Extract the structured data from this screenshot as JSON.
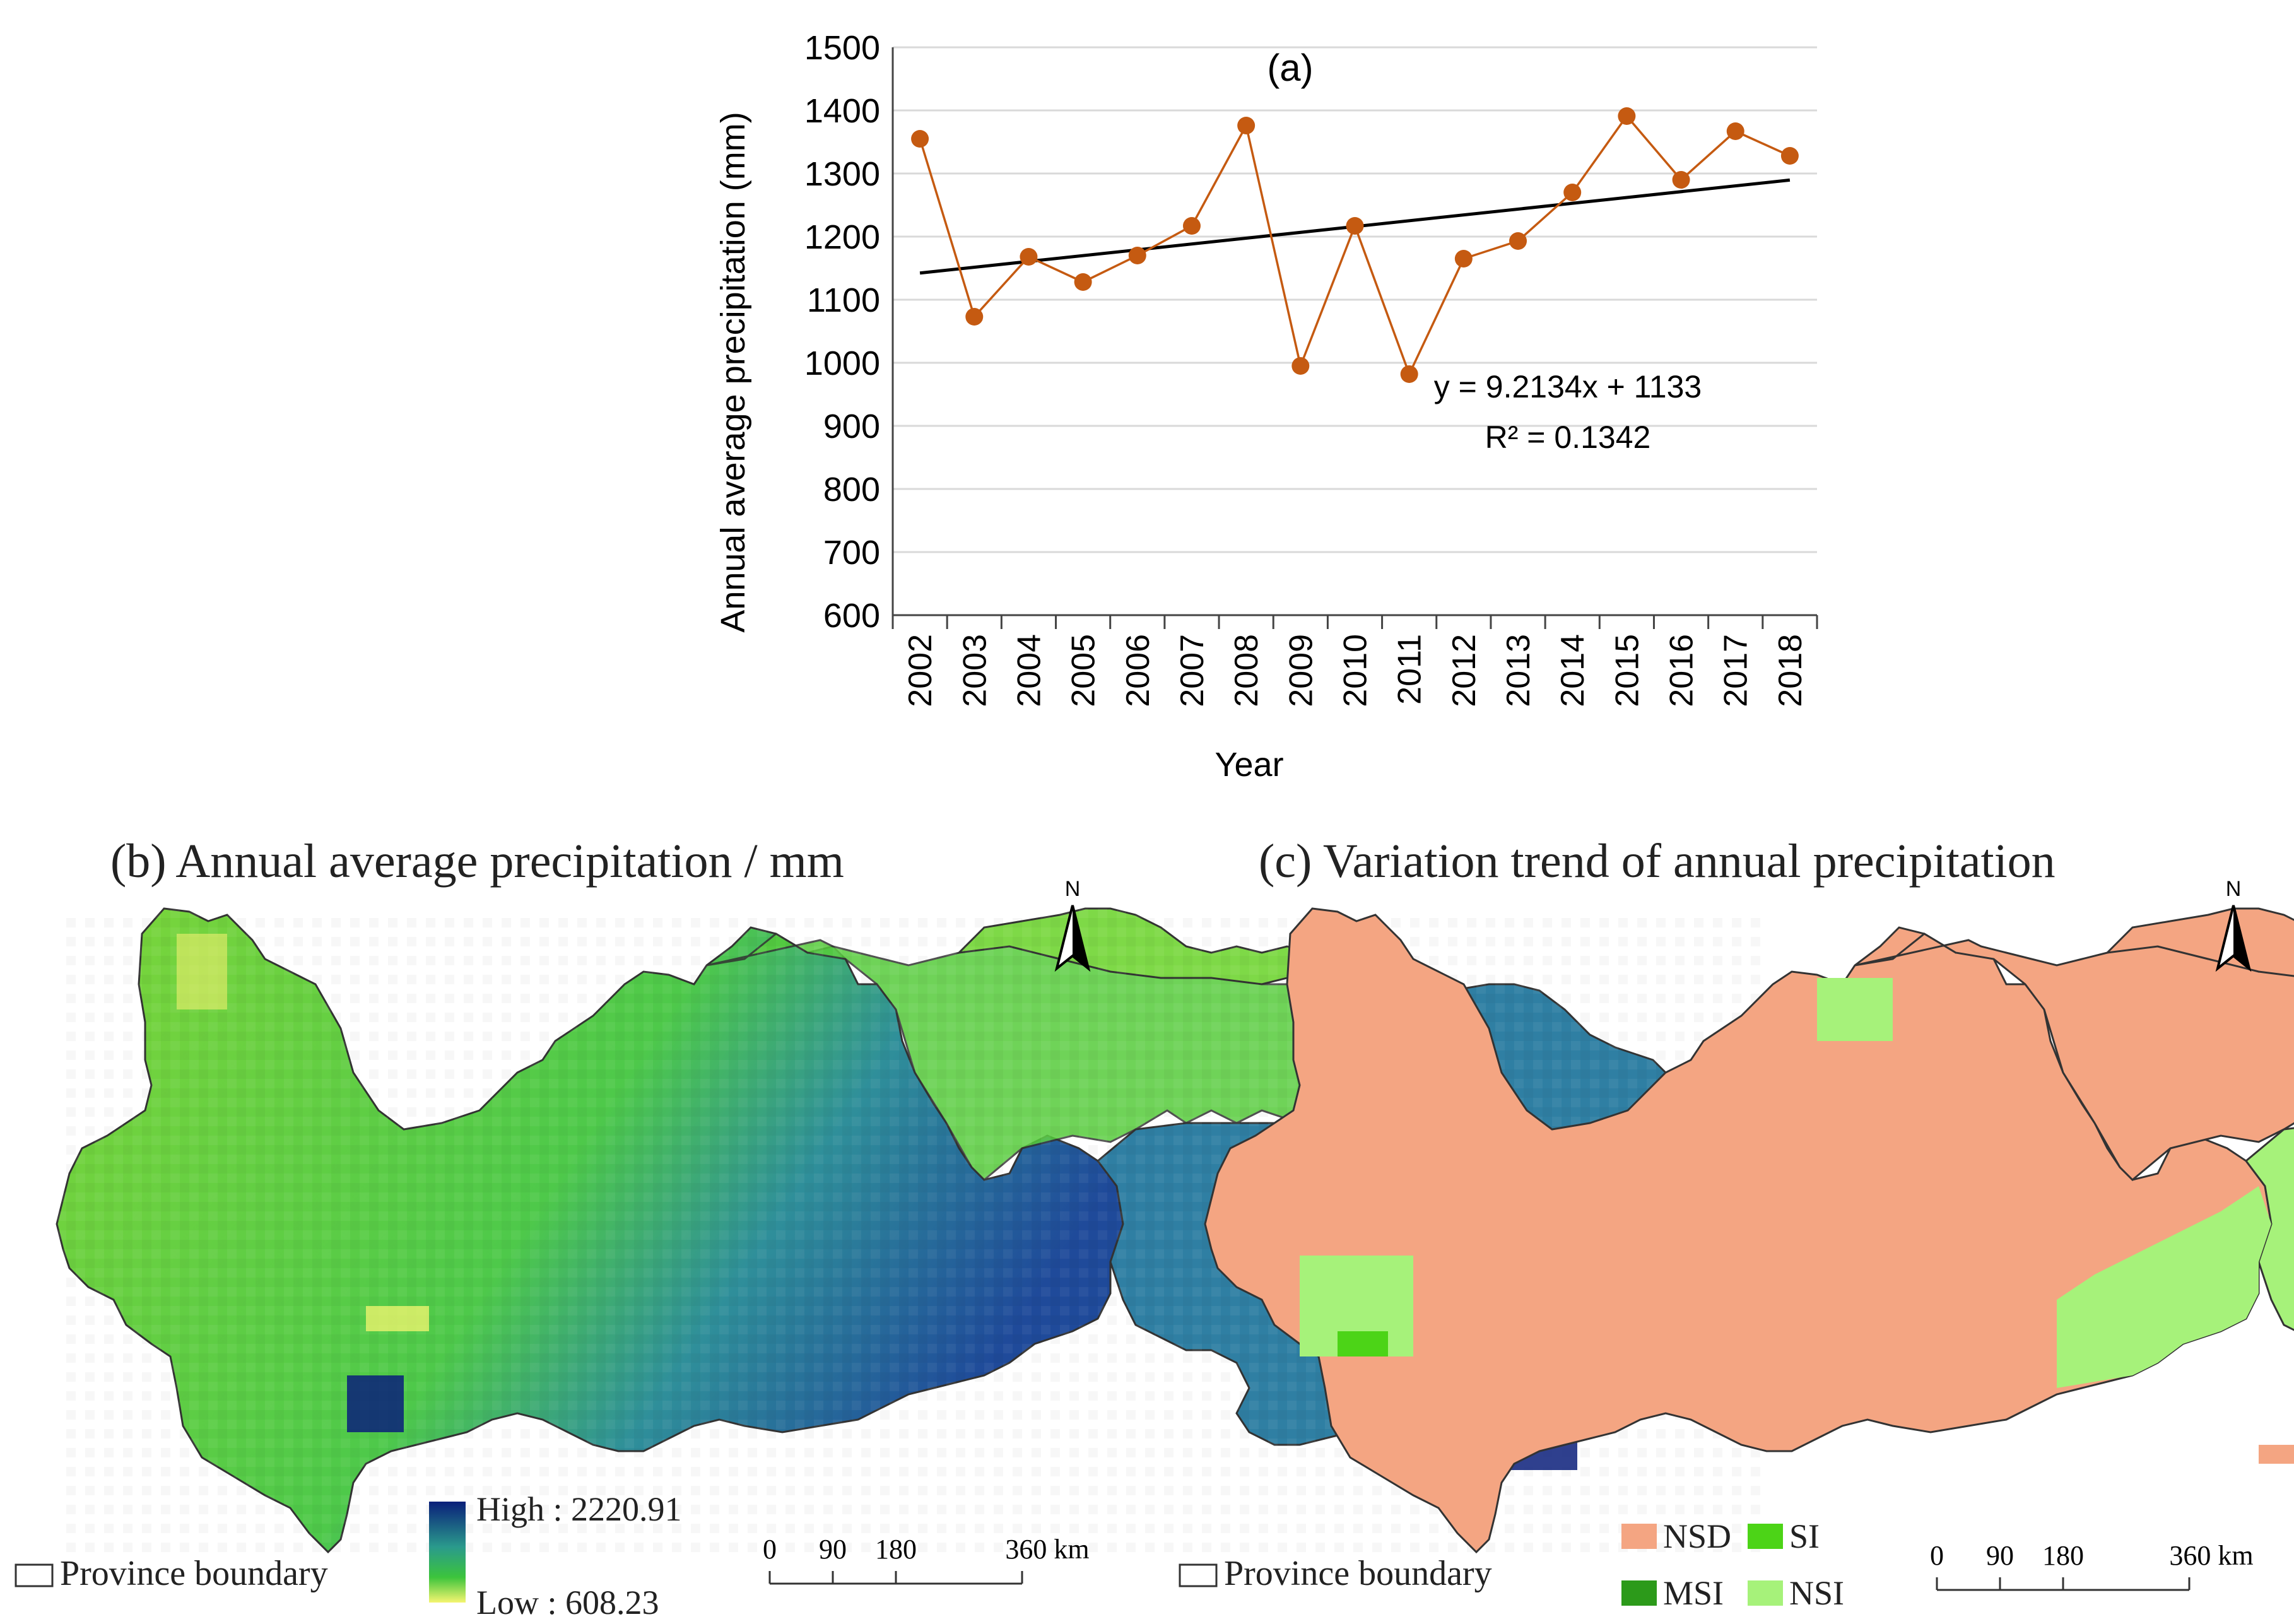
{
  "panel_a": {
    "chart_data": {
      "type": "line",
      "title": "(a)",
      "xlabel": "Year",
      "ylabel": "Annual average precipitation (mm)",
      "ylim": [
        600,
        1500
      ],
      "yticks": [
        600,
        700,
        800,
        900,
        1000,
        1100,
        1200,
        1300,
        1400,
        1500
      ],
      "categories": [
        "2002",
        "2003",
        "2004",
        "2005",
        "2006",
        "2007",
        "2008",
        "2009",
        "2010",
        "2011",
        "2012",
        "2013",
        "2014",
        "2015",
        "2016",
        "2017",
        "2018"
      ],
      "series": [
        {
          "values": [
            1355,
            1073,
            1168,
            1128,
            1170,
            1217,
            1376,
            995,
            1217,
            982,
            1165,
            1193,
            1270,
            1391,
            1290,
            1367,
            1328
          ],
          "color": "#c55a11"
        }
      ],
      "trendline": {
        "slope": 9.2134,
        "intercept": 1133,
        "color": "#000000"
      },
      "equation": "y = 9.2134x + 1133",
      "r2": "R² = 0.1342",
      "grid": true,
      "legend": "none"
    }
  },
  "panel_b": {
    "title": "(b) Annual average precipitation / mm",
    "legend_high": "High : 2220.91",
    "legend_low": "Low : 608.23",
    "boundary_label": "Province boundary",
    "north": "N",
    "scale_labels": [
      "0",
      "90",
      "180",
      "360 km"
    ],
    "colors": {
      "high": "#0a1f7a",
      "mid": "#3cc43c",
      "low": "#f5f570"
    }
  },
  "panel_c": {
    "title": "(c) Variation trend of annual precipitation",
    "legend": [
      {
        "label": "NSD",
        "color": "#f4a582"
      },
      {
        "label": "SI",
        "color": "#4cd417"
      },
      {
        "label": "MSI",
        "color": "#2c9a1a"
      },
      {
        "label": "NSI",
        "color": "#a6f27a"
      }
    ],
    "boundary_label": "Province boundary",
    "north": "N",
    "scale_labels": [
      "0",
      "90",
      "180",
      "360 km"
    ]
  }
}
